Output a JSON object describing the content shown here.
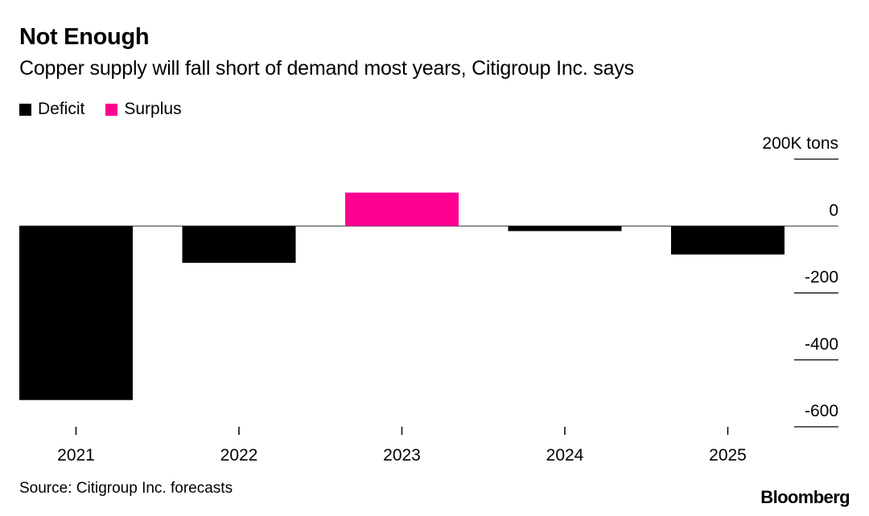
{
  "title": "Not Enough",
  "subtitle": "Copper supply will fall short of demand most years, Citigroup Inc. says",
  "legend": [
    {
      "label": "Deficit",
      "color": "#000000"
    },
    {
      "label": "Surplus",
      "color": "#ff0090"
    }
  ],
  "source": "Source: Citigroup Inc. forecasts",
  "logo": "Bloomberg",
  "chart_data": {
    "type": "bar",
    "title": "Not Enough",
    "subtitle": "Copper supply will fall short of demand most years, Citigroup Inc. says",
    "categories": [
      "2021",
      "2022",
      "2023",
      "2024",
      "2025"
    ],
    "values": [
      -520,
      -110,
      100,
      -15,
      -85
    ],
    "colors": [
      "#000000",
      "#000000",
      "#ff0090",
      "#000000",
      "#000000"
    ],
    "unit": "K tons",
    "ylim": [
      -600,
      200
    ],
    "yticks": [
      200,
      0,
      -200,
      -400,
      -600
    ],
    "ytick_labels": [
      "200K tons",
      "0",
      "-200",
      "-400",
      "-600"
    ],
    "axis_position": "right",
    "legend_position": "top-left"
  }
}
